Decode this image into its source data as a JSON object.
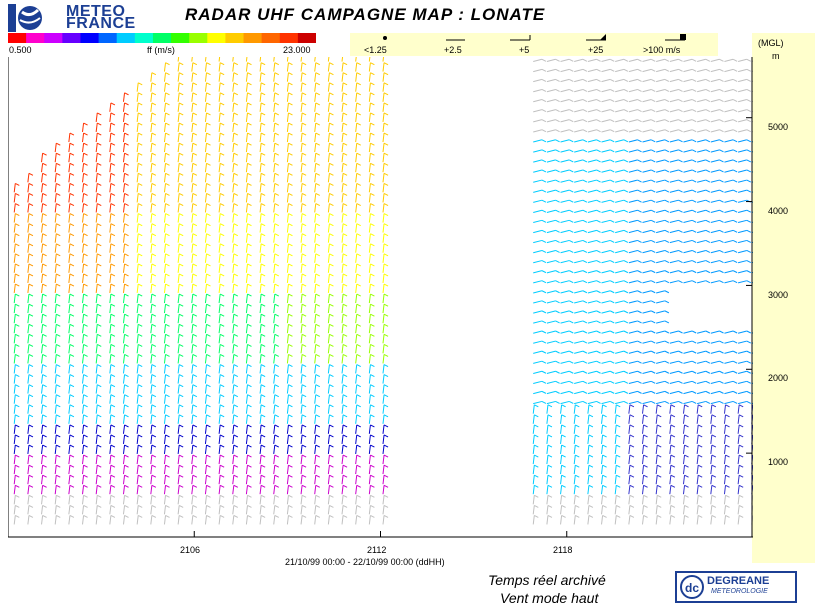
{
  "header": {
    "logo_text_line1": "METEO",
    "logo_text_line2": "FRANCE",
    "title": "RADAR UHF CAMPAGNE MAP : LONATE"
  },
  "legend": {
    "min": "0.500",
    "unit": "ff (m/s)",
    "max": "23.000",
    "colors": [
      "#ff0000",
      "#ff00cc",
      "#cc00ff",
      "#6600ff",
      "#0000ff",
      "#0066ff",
      "#00ccff",
      "#00ffcc",
      "#00ff66",
      "#33ff00",
      "#99ff00",
      "#ffff00",
      "#ffcc00",
      "#ff9900",
      "#ff6600",
      "#ff3300",
      "#cc0000"
    ],
    "barb_scale": [
      "<1.25",
      "+2.5",
      "+5",
      "+25",
      ">100 m/s"
    ]
  },
  "yaxis": {
    "label": "(MGL)",
    "unit": "m",
    "ticks": [
      "5000",
      "4000",
      "3000",
      "2000",
      "1000"
    ]
  },
  "xaxis": {
    "ticks": [
      "2106",
      "2112",
      "2118"
    ],
    "range": "21/10/99 00:00 - 22/10/99 00:00 (ddHH)"
  },
  "status": {
    "line1": "Temps réel archivé",
    "line2": "Vent mode haut"
  },
  "brand": {
    "name": "DEGREANE",
    "sub": "METEOROLOGIE"
  },
  "chart_data": {
    "type": "scatter",
    "title": "RADAR UHF CAMPAGNE MAP : LONATE",
    "xlabel": "21/10/99 00:00 - 22/10/99 00:00 (ddHH)",
    "ylabel": "(MGL) m",
    "xlim": [
      2100,
      2124
    ],
    "ylim": [
      0,
      5700
    ],
    "x_ticks": [
      2106,
      2112,
      2118
    ],
    "y_ticks": [
      1000,
      2000,
      3000,
      4000,
      5000
    ],
    "data_gap": [
      2112.5,
      2116.5
    ],
    "color_scale": {
      "min": 0.5,
      "max": 23.0,
      "unit": "ff (m/s)"
    },
    "grid": false
  }
}
